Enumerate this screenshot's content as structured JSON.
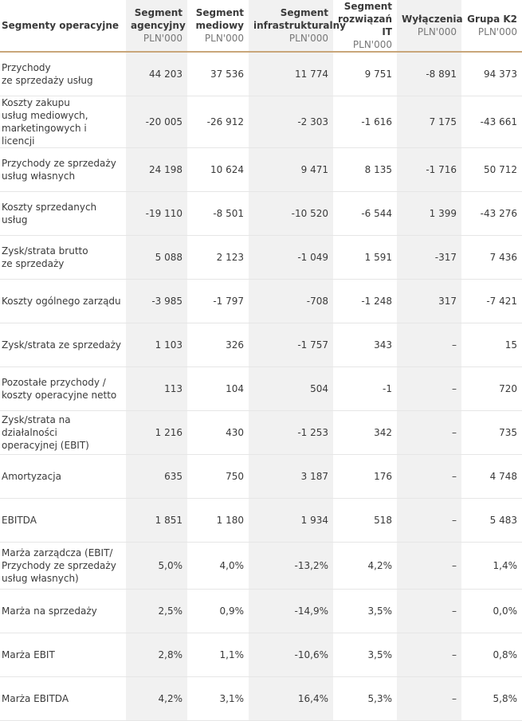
{
  "header": {
    "first": "Segmenty operacyjne",
    "columns": [
      {
        "title": [
          "Segment",
          "agencyjny"
        ],
        "unit": "PLN'000"
      },
      {
        "title": [
          "Segment",
          "mediowy"
        ],
        "unit": "PLN'000"
      },
      {
        "title": [
          "Segment",
          "infrastrukturalny"
        ],
        "unit": "PLN'000"
      },
      {
        "title": [
          "Segment",
          "rozwiązań IT"
        ],
        "unit": "PLN'000"
      },
      {
        "title": [
          "Wyłączenia"
        ],
        "unit": "PLN'000"
      },
      {
        "title": [
          "Grupa K2"
        ],
        "unit": "PLN'000"
      }
    ]
  },
  "rows": [
    {
      "label": [
        "Przychody",
        "ze sprzedaży usług"
      ],
      "values": [
        "44 203",
        "37 536",
        "11 774",
        "9 751",
        "-8 891",
        "94 373"
      ]
    },
    {
      "label": [
        "Koszty zakupu",
        "usług mediowych,",
        "marketingowych i licencji"
      ],
      "values": [
        "-20 005",
        "-26 912",
        "-2 303",
        "-1 616",
        "7 175",
        "-43 661"
      ]
    },
    {
      "label": [
        "Przychody ze sprzedaży",
        "usług własnych"
      ],
      "values": [
        "24 198",
        "10 624",
        "9 471",
        "8 135",
        "-1 716",
        "50 712"
      ]
    },
    {
      "label": [
        "Koszty sprzedanych usług"
      ],
      "values": [
        "-19 110",
        "-8 501",
        "-10 520",
        "-6 544",
        "1 399",
        "-43 276"
      ]
    },
    {
      "label": [
        "Zysk/strata brutto",
        "ze sprzedaży"
      ],
      "values": [
        "5 088",
        "2 123",
        "-1 049",
        "1 591",
        "-317",
        "7 436"
      ]
    },
    {
      "label": [
        "Koszty ogólnego zarządu"
      ],
      "values": [
        "-3 985",
        "-1 797",
        "-708",
        "-1 248",
        "317",
        "-7 421"
      ]
    },
    {
      "label": [
        "Zysk/strata ze sprzedaży"
      ],
      "values": [
        "1 103",
        "326",
        "-1 757",
        "343",
        "–",
        "15"
      ]
    },
    {
      "label": [
        "Pozostałe przychody /",
        "koszty operacyjne netto"
      ],
      "values": [
        "113",
        "104",
        "504",
        "-1",
        "–",
        "720"
      ]
    },
    {
      "label": [
        "Zysk/strata na działalności",
        "operacyjnej (EBIT)"
      ],
      "values": [
        "1 216",
        "430",
        "-1 253",
        "342",
        "–",
        "735"
      ]
    },
    {
      "label": [
        "Amortyzacja"
      ],
      "values": [
        "635",
        "750",
        "3 187",
        "176",
        "–",
        "4 748"
      ]
    },
    {
      "label": [
        "EBITDA"
      ],
      "values": [
        "1 851",
        "1 180",
        "1 934",
        "518",
        "–",
        "5 483"
      ]
    },
    {
      "label": [
        "Marża zarządcza (EBIT/",
        "Przychody ze sprzedaży",
        "usług własnych)"
      ],
      "values": [
        "5,0%",
        "4,0%",
        "-13,2%",
        "4,2%",
        "–",
        "1,4%"
      ]
    },
    {
      "label": [
        "Marża na sprzedaży"
      ],
      "values": [
        "2,5%",
        "0,9%",
        "-14,9%",
        "3,5%",
        "–",
        "0,0%"
      ]
    },
    {
      "label": [
        "Marża EBIT"
      ],
      "values": [
        "2,8%",
        "1,1%",
        "-10,6%",
        "3,5%",
        "–",
        "0,8%"
      ]
    },
    {
      "label": [
        "Marża EBITDA"
      ],
      "values": [
        "4,2%",
        "3,1%",
        "16,4%",
        "5,3%",
        "–",
        "5,8%"
      ]
    }
  ]
}
